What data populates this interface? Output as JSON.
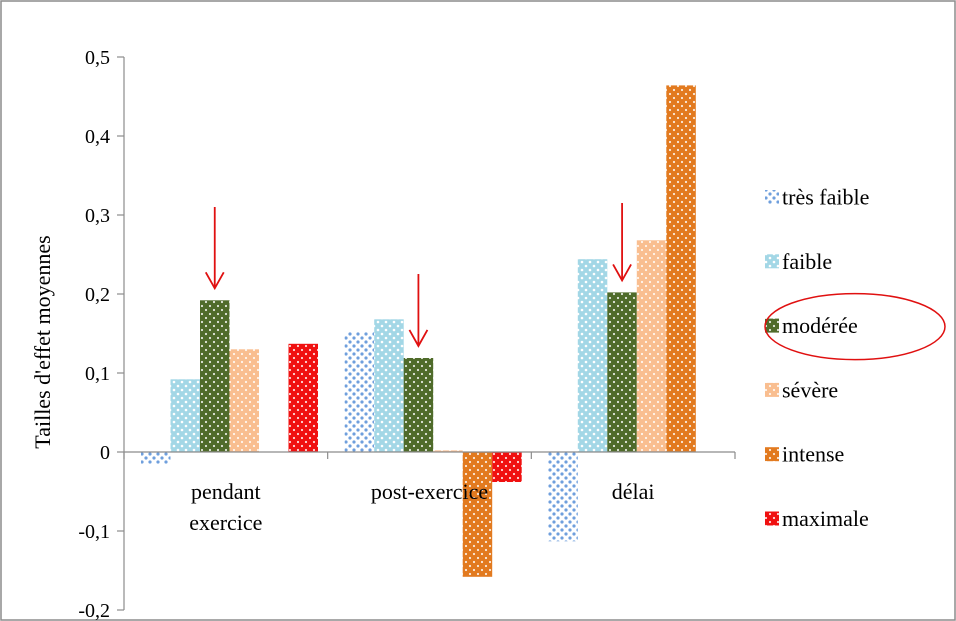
{
  "chart_data": {
    "type": "bar",
    "title": "",
    "xlabel": "",
    "ylabel": "Tailles d'effet moyennes",
    "ylim": [
      -0.2,
      0.5
    ],
    "ytick_step": 0.1,
    "ytick_labels": [
      "0,5",
      "0,4",
      "0,3",
      "0,2",
      "0,1",
      "0",
      "-0,1",
      "-0,2"
    ],
    "grid": false,
    "legend_position": "right",
    "categories": [
      {
        "line1": "pendant",
        "line2": "exercice"
      },
      {
        "line1": "post-exercice",
        "line2": ""
      },
      {
        "line1": "délai",
        "line2": ""
      }
    ],
    "series": [
      {
        "name": "très faible",
        "color": "#6f9fdd",
        "pattern": "dots-light",
        "values": [
          -0.015,
          0.152,
          -0.113
        ]
      },
      {
        "name": "faible",
        "color": "#a3d7e6",
        "pattern": "dots-dense",
        "values": [
          0.092,
          0.168,
          0.244
        ]
      },
      {
        "name": "modérée",
        "color": "#4f6b2a",
        "pattern": "dots",
        "values": [
          0.192,
          0.119,
          0.202
        ]
      },
      {
        "name": "sévère",
        "color": "#f9be90",
        "pattern": "dots",
        "values": [
          0.13,
          0.002,
          0.268
        ]
      },
      {
        "name": "intense",
        "color": "#e27a1f",
        "pattern": "dots",
        "values": [
          null,
          -0.158,
          0.464
        ]
      },
      {
        "name": "maximale",
        "color": "#f01010",
        "pattern": "dots",
        "values": [
          0.137,
          -0.038,
          null
        ]
      }
    ],
    "annotations": [
      {
        "type": "arrow",
        "target": "modérée",
        "category_index": 0
      },
      {
        "type": "arrow",
        "target": "modérée",
        "category_index": 1
      },
      {
        "type": "arrow",
        "target": "modérée",
        "category_index": 2
      },
      {
        "type": "ellipse",
        "target_legend": "modérée"
      }
    ],
    "annotation_color": "#e01010"
  }
}
